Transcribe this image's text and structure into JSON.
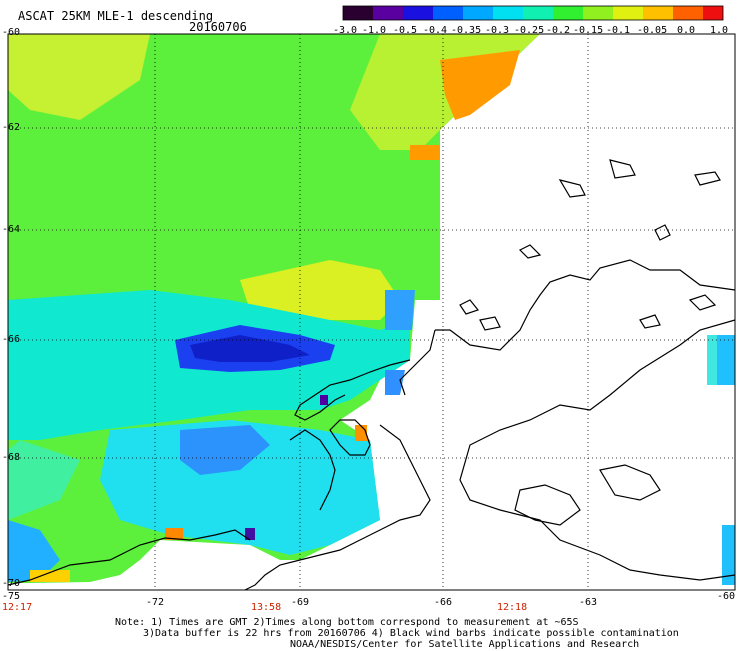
{
  "header": {
    "product": "ASCAT 25KM MLE-1 descending",
    "date": "20160706"
  },
  "colorbar": {
    "labels": [
      "-3.0",
      "-1.0",
      "-0.5",
      "-0.4",
      "-0.35",
      "-0.3",
      "-0.25",
      "-0.2",
      "-0.15",
      "-0.1",
      "-0.05",
      "0.0",
      "1.0"
    ],
    "colors": [
      "#2a0030",
      "#5a00a0",
      "#1a10e0",
      "#0060ff",
      "#00a8ff",
      "#00e0f0",
      "#10f0b0",
      "#30f030",
      "#90f020",
      "#e0f010",
      "#ffc000",
      "#ff6000",
      "#ee1010"
    ]
  },
  "lat_labels": [
    "-60",
    "-62",
    "-64",
    "-66",
    "-68",
    "-70"
  ],
  "lon_labels": [
    "-75",
    "-72",
    "-69",
    "-66",
    "-63",
    "-60"
  ],
  "times": [
    "12:17",
    "13:58",
    "12:18"
  ],
  "notes": {
    "line1": "Note: 1) Times are GMT 2)Times along bottom correspond to measurement at ~65S",
    "line2": "3)Data buffer is 22 hrs from 20160706 4) Black wind barbs indicate possible contamination",
    "line3": "NOAA/NESDIS/Center for Satellite Applications and Research"
  }
}
